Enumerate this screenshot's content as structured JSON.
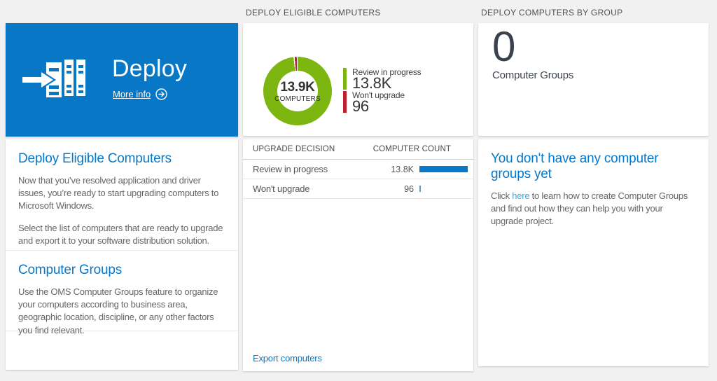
{
  "colors": {
    "accent_blue": "#0877c6",
    "heading_blue": "#0878c8",
    "link_light_blue": "#4da2dc",
    "green": "#7db610",
    "red": "#bf1e2e",
    "page_bg": "#f1f1f1"
  },
  "left": {
    "tile": {
      "title": "Deploy",
      "more_info_label": "More info"
    },
    "sections": [
      {
        "heading": "Deploy Eligible Computers",
        "p1": "Now that you’ve resolved application and driver issues, you’re ready to start upgrading computers to Microsoft Windows.",
        "p2": "Select the list of computers that are ready to upgrade and export it to your software distribution solution."
      },
      {
        "heading": "Computer Groups",
        "p1": "Use the OMS Computer Groups feature to organize your computers according to business area, geographic location, discipline, or any other factors you find relevant."
      }
    ]
  },
  "middle": {
    "header": "DEPLOY ELIGIBLE COMPUTERS",
    "donut": {
      "center_value": "13.9K",
      "center_label": "COMPUTERS",
      "legend": [
        {
          "label": "Review in progress",
          "value": "13.8K",
          "color": "#7db610"
        },
        {
          "label": "Won't upgrade",
          "value": "96",
          "color": "#bf1e2e"
        }
      ]
    },
    "table": {
      "header_left": "UPGRADE DECISION",
      "header_right": "COMPUTER COUNT",
      "rows": [
        {
          "decision": "Review in progress",
          "count": "13.8K",
          "bar_px": "69px",
          "bar_color": "#0878c8"
        },
        {
          "decision": "Won't upgrade",
          "count": "96",
          "bar_px": "2px",
          "bar_color": "#4da2dc"
        }
      ]
    },
    "footer_link": "Export computers"
  },
  "right": {
    "header": "DEPLOY COMPUTERS BY GROUP",
    "stat": {
      "value": "0",
      "label": "Computer Groups"
    },
    "empty_state": {
      "heading": "You don't have any computer groups yet",
      "body_pre": "Click ",
      "link_text": "here",
      "body_post": " to learn how to create Computer Groups and find out how they can help you with your upgrade project."
    }
  },
  "chart_data": {
    "type": "pie",
    "title": "Deploy eligible computers",
    "labels": [
      "Review in progress",
      "Won't upgrade"
    ],
    "values": [
      13800,
      96
    ],
    "colors": [
      "#7db610",
      "#bf1e2e"
    ],
    "center_total": "13.9K",
    "center_label": "COMPUTERS",
    "legend_position": "right",
    "donut": true
  }
}
